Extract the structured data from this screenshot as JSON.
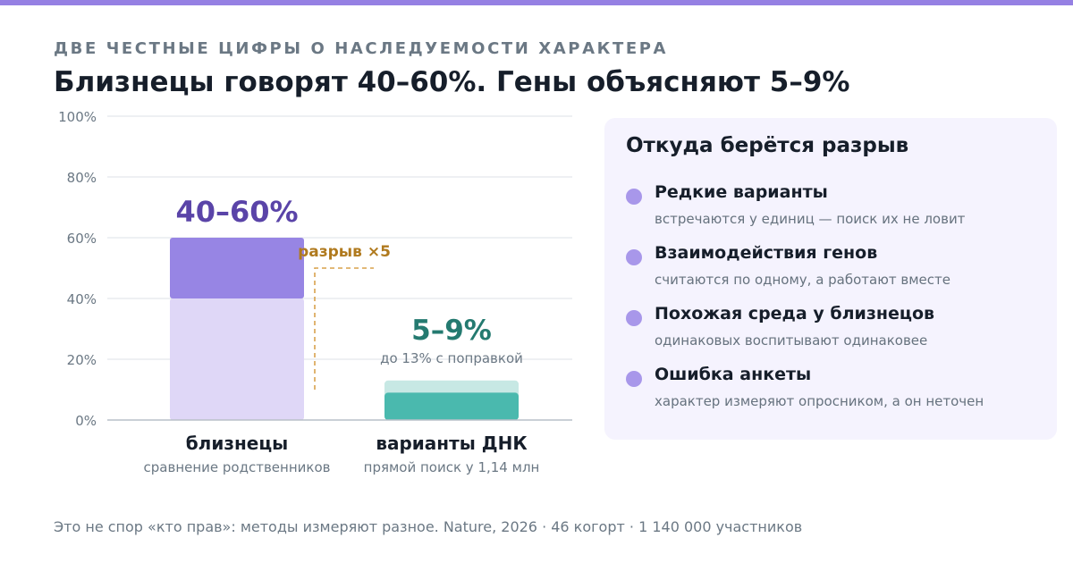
{
  "header": {
    "kicker": "ДВЕ ЧЕСТНЫЕ ЦИФРЫ О НАСЛЕДУЕМОСТИ ХАРАКТЕРА",
    "title": "Близнецы говорят 40–60%. Гены объясняют 5–9%"
  },
  "chart_data": {
    "type": "bar",
    "ylim": [
      0,
      100
    ],
    "yticks": [
      "0%",
      "20%",
      "40%",
      "60%",
      "80%",
      "100%"
    ],
    "ytick_values": [
      0,
      20,
      40,
      60,
      80,
      100
    ],
    "bars": [
      {
        "category": "близнецы",
        "sublabel": "сравнение родственников",
        "low": 40,
        "high": 60,
        "range_label": "40–60%",
        "note": "",
        "color_low": "#dfd7f7",
        "color_range": "#9785e4",
        "label_color": "#5a44a8"
      },
      {
        "category": "варианты ДНК",
        "sublabel": "прямой поиск у 1,14 млн",
        "low": 9,
        "high": 13,
        "range_label": "5–9%",
        "note": "до 13% с поправкой",
        "color_low": "#4ab9ae",
        "color_range": "#c7e8e4",
        "label_color": "#247a70"
      }
    ],
    "annotation": {
      "label": "разрыв ×5",
      "color": "#b07a1e"
    },
    "grid": true
  },
  "panel": {
    "title": "Откуда берётся разрыв",
    "items": [
      {
        "title": "Редкие варианты",
        "desc": "встречаются у единиц — поиск их не ловит"
      },
      {
        "title": "Взаимодействия генов",
        "desc": "считаются по одному, а работают вместе"
      },
      {
        "title": "Похожая среда у близнецов",
        "desc": "одинаковых воспитывают одинаковее"
      },
      {
        "title": "Ошибка анкеты",
        "desc": "характер измеряют опросником, а он неточен"
      }
    ]
  },
  "footer": {
    "text": "Это не спор «кто прав»: методы измеряют разное. Nature, 2026 · 46 когорт · 1 140 000 участников"
  },
  "colors": {
    "accent": "#9580e3",
    "dot": "#a897ea",
    "panel_bg": "#f5f3fe"
  }
}
